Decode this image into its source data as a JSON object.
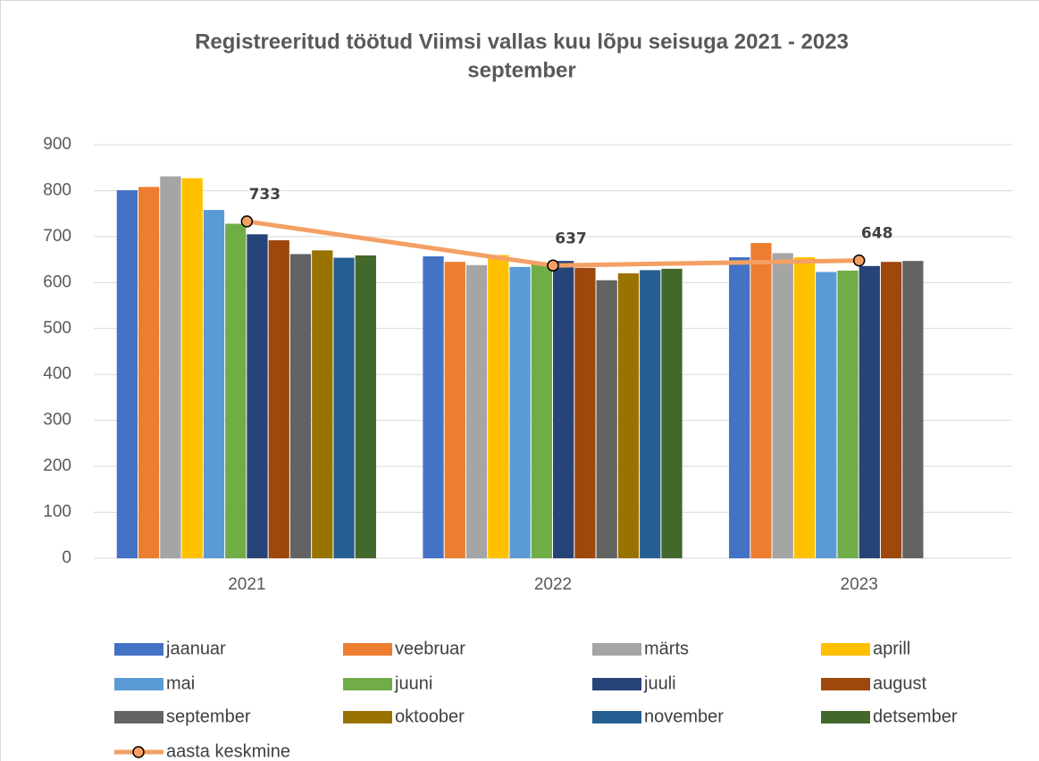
{
  "chart_data": {
    "type": "bar",
    "title": [
      "Registreeritud töötud Viimsi vallas kuu lõpu seisuga 2021 - 2023",
      "september"
    ],
    "categories": [
      "2021",
      "2022",
      "2023"
    ],
    "ylim": [
      0,
      900
    ],
    "yticks": [
      0,
      100,
      200,
      300,
      400,
      500,
      600,
      700,
      800,
      900
    ],
    "grid": true,
    "legend": "bottom",
    "series": [
      {
        "name": "jaanuar",
        "color": "#4472c4",
        "values": [
          801,
          657,
          655
        ]
      },
      {
        "name": "veebruar",
        "color": "#ed7d31",
        "values": [
          808,
          645,
          686
        ]
      },
      {
        "name": "märts",
        "color": "#a5a5a5",
        "values": [
          831,
          638,
          664
        ]
      },
      {
        "name": "aprill",
        "color": "#ffc000",
        "values": [
          827,
          660,
          655
        ]
      },
      {
        "name": "mai",
        "color": "#5b9bd5",
        "values": [
          758,
          634,
          623
        ]
      },
      {
        "name": "juuni",
        "color": "#70ad47",
        "values": [
          728,
          641,
          626
        ]
      },
      {
        "name": "juuli",
        "color": "#264478",
        "values": [
          705,
          647,
          636
        ]
      },
      {
        "name": "august",
        "color": "#9e480e",
        "values": [
          692,
          632,
          645
        ]
      },
      {
        "name": "september",
        "color": "#636363",
        "values": [
          662,
          605,
          647
        ]
      },
      {
        "name": "oktoober",
        "color": "#997300",
        "values": [
          670,
          620,
          null
        ]
      },
      {
        "name": "november",
        "color": "#255e91",
        "values": [
          654,
          627,
          null
        ]
      },
      {
        "name": "detsember",
        "color": "#43682b",
        "values": [
          659,
          630,
          null
        ]
      },
      {
        "name": "aasta keskmine",
        "color": "#f4a064",
        "type": "line",
        "data_labels": true,
        "values": [
          733,
          637,
          648
        ]
      }
    ]
  }
}
